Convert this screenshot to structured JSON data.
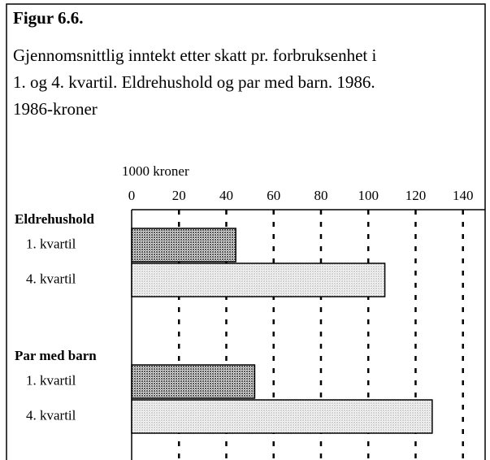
{
  "chart_data": {
    "type": "bar",
    "orientation": "horizontal",
    "title": "Figur 6.6.",
    "subtitle": [
      "Gjennomsnittlig inntekt etter skatt pr. forbruksenhet i",
      "1. og 4. kvartil. Eldrehushold og par med barn. 1986.",
      "1986-kroner"
    ],
    "x_label": "1000 kroner",
    "categories": [
      "Eldrehushold",
      "Par med barn"
    ],
    "series": [
      {
        "name": "1. kvartil",
        "color": "#555555",
        "values": [
          44,
          52
        ]
      },
      {
        "name": "4. kvartil",
        "color": "#d0d0d0",
        "values": [
          107,
          127
        ]
      }
    ],
    "xlim": [
      0,
      148
    ],
    "xticks": [
      0,
      20,
      40,
      60,
      80,
      100,
      120,
      140
    ],
    "grid": true
  }
}
